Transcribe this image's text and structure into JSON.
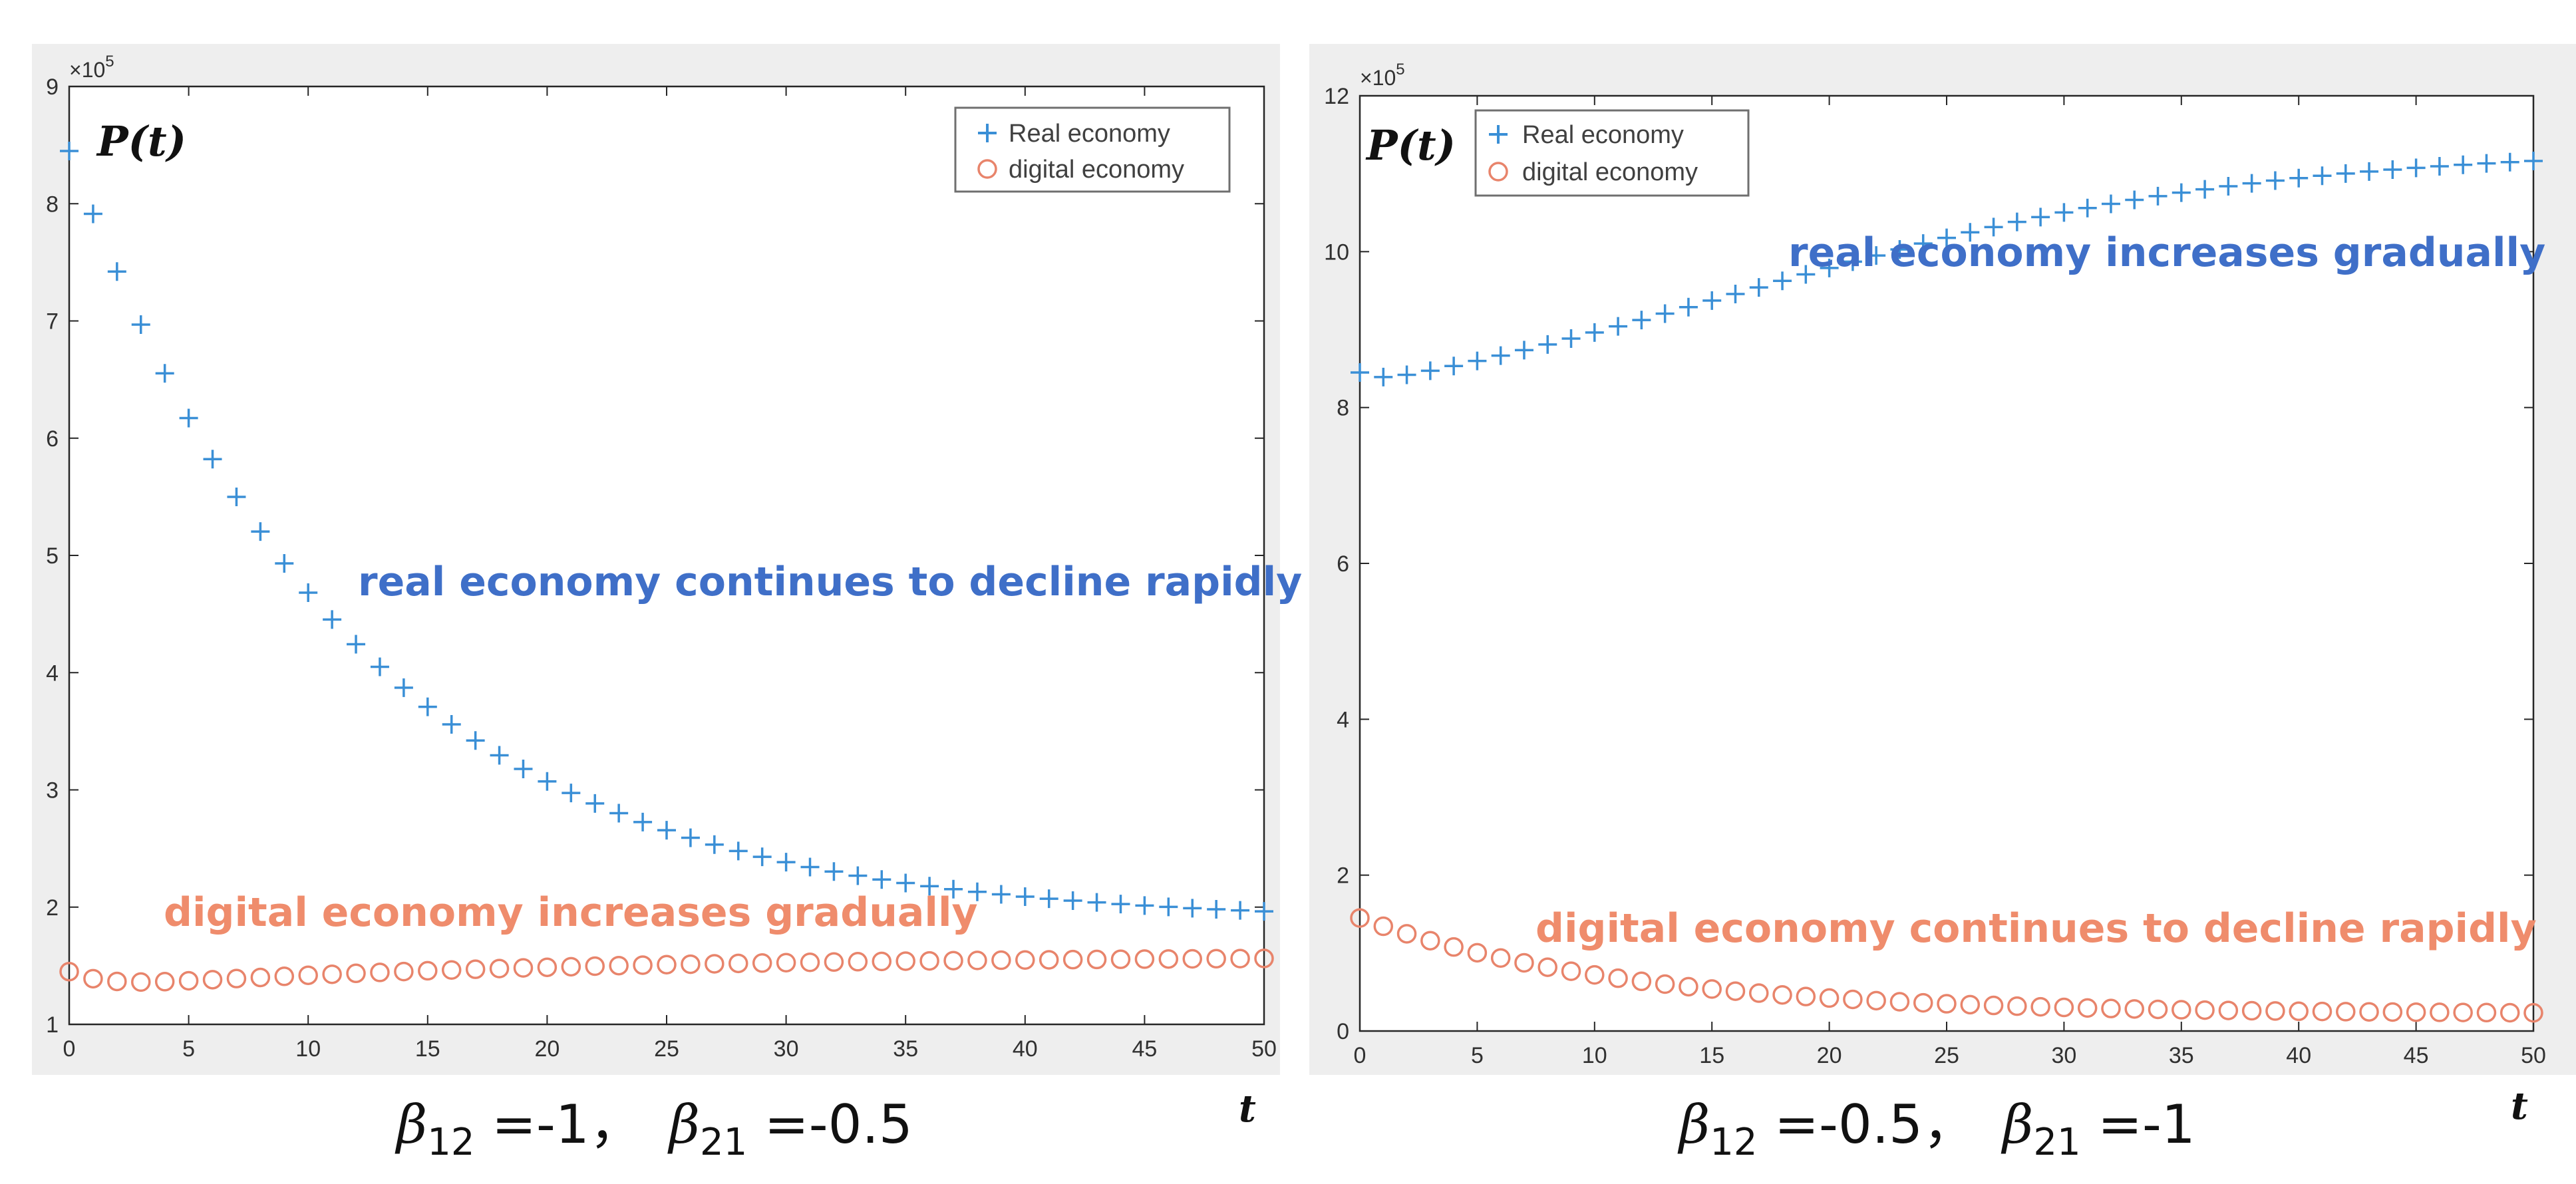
{
  "chart_data": [
    {
      "type": "scatter",
      "ylabel": "P(t)",
      "xlabel": "t",
      "y_exponent_label": "×10",
      "y_exponent_power": "5",
      "xlim": [
        0,
        50
      ],
      "ylim": [
        1,
        9
      ],
      "x_ticks": [
        "0",
        "5",
        "10",
        "15",
        "20",
        "25",
        "30",
        "35",
        "40",
        "45",
        "50"
      ],
      "y_ticks": [
        "1",
        "2",
        "3",
        "4",
        "5",
        "6",
        "7",
        "8",
        "9"
      ],
      "legend_position": "top-right",
      "series": [
        {
          "name": "Real economy",
          "marker": "plus",
          "color": "#3a8fd6",
          "x": [
            0,
            50
          ],
          "start": 8.45,
          "end": 1.87,
          "shape": "decay",
          "rate": 0.085
        },
        {
          "name": "digital economy",
          "marker": "circle",
          "color": "#e8846b",
          "x": [
            0,
            50
          ],
          "start": 1.45,
          "end": 1.58,
          "dip": 1.3,
          "shape": "dip"
        }
      ],
      "annotations": [
        {
          "text": "real economy continues to decline rapidly",
          "color": "#3f6fc8"
        },
        {
          "text": "digital economy increases gradually",
          "color": "#ef8c6c"
        }
      ],
      "caption": {
        "b1": "β",
        "s1": "12",
        "v1": " =-1，",
        "b2": "β",
        "s2": "21",
        "v2": " =-0.5"
      }
    },
    {
      "type": "scatter",
      "ylabel": "P(t)",
      "xlabel": "t",
      "y_exponent_label": "×10",
      "y_exponent_power": "5",
      "xlim": [
        0,
        50
      ],
      "ylim": [
        0,
        12
      ],
      "x_ticks": [
        "0",
        "5",
        "10",
        "15",
        "20",
        "25",
        "30",
        "35",
        "40",
        "45",
        "50"
      ],
      "y_ticks": [
        "0",
        "2",
        "4",
        "6",
        "8",
        "10",
        "12"
      ],
      "legend_position": "top-left",
      "series": [
        {
          "name": "Real economy",
          "marker": "plus",
          "color": "#3a8fd6",
          "x": [
            0,
            50
          ],
          "start": 8.45,
          "end": 11.8,
          "dip": 8.3,
          "shape": "logistic"
        },
        {
          "name": "digital economy",
          "marker": "circle",
          "color": "#e8846b",
          "x": [
            0,
            50
          ],
          "start": 1.45,
          "end": 0.22,
          "shape": "decay",
          "rate": 0.09
        }
      ],
      "annotations": [
        {
          "text": "real economy increases gradually",
          "color": "#3f6fc8"
        },
        {
          "text": "digital economy continues to decline rapidly",
          "color": "#ef8c6c"
        }
      ],
      "caption": {
        "b1": "β",
        "s1": "12",
        "v1": " =-0.5，",
        "b2": "β",
        "s2": "21",
        "v2": " =-1"
      }
    }
  ]
}
